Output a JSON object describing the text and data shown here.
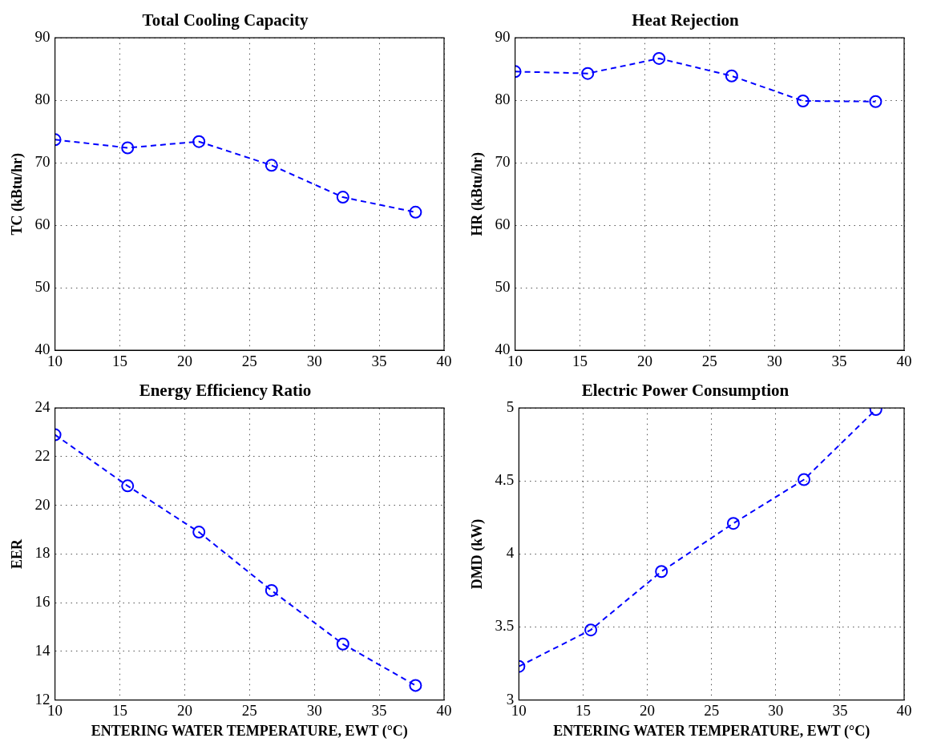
{
  "chart_data": [
    {
      "type": "line",
      "title": "Total Cooling Capacity",
      "ylabel": "TC (kBtu/hr)",
      "x": [
        10,
        15.6,
        21.1,
        26.7,
        32.2,
        37.8
      ],
      "series": [
        {
          "color": "#0000ff",
          "values": [
            73.7,
            72.4,
            73.4,
            69.6,
            64.5,
            62.1
          ]
        }
      ],
      "xlim": [
        10,
        40
      ],
      "xticks": [
        10,
        15,
        20,
        25,
        30,
        35,
        40
      ],
      "ylim": [
        40,
        90
      ],
      "yticks": [
        40,
        50,
        60,
        70,
        80,
        90
      ],
      "grid": true,
      "marker": "circle",
      "line_style": "dashed"
    },
    {
      "type": "line",
      "title": "Heat Rejection",
      "ylabel": "HR (kBtu/hr)",
      "x": [
        10,
        15.6,
        21.1,
        26.7,
        32.2,
        37.8
      ],
      "series": [
        {
          "color": "#0000ff",
          "values": [
            84.6,
            84.3,
            86.7,
            83.9,
            79.9,
            79.8
          ]
        }
      ],
      "xlim": [
        10,
        40
      ],
      "xticks": [
        10,
        15,
        20,
        25,
        30,
        35,
        40
      ],
      "ylim": [
        40,
        90
      ],
      "yticks": [
        40,
        50,
        60,
        70,
        80,
        90
      ],
      "grid": true,
      "marker": "circle",
      "line_style": "dashed"
    },
    {
      "type": "line",
      "title": "Energy Efficiency Ratio",
      "xlabel": "ENTERING WATER TEMPERATURE, EWT (°C)",
      "ylabel": "EER",
      "x": [
        10,
        15.6,
        21.1,
        26.7,
        32.2,
        37.8
      ],
      "series": [
        {
          "color": "#0000ff",
          "values": [
            22.9,
            20.8,
            18.9,
            16.5,
            14.3,
            12.6
          ]
        }
      ],
      "xlim": [
        10,
        40
      ],
      "xticks": [
        10,
        15,
        20,
        25,
        30,
        35,
        40
      ],
      "ylim": [
        12,
        24
      ],
      "yticks": [
        12,
        14,
        16,
        18,
        20,
        22,
        24
      ],
      "grid": true,
      "marker": "circle",
      "line_style": "dashed"
    },
    {
      "type": "line",
      "title": "Electric Power Consumption",
      "xlabel": "ENTERING WATER TEMPERATURE, EWT (°C)",
      "ylabel": "DMD (kW)",
      "x": [
        10,
        15.6,
        21.1,
        26.7,
        32.2,
        37.8
      ],
      "series": [
        {
          "color": "#0000ff",
          "values": [
            3.23,
            3.48,
            3.88,
            4.21,
            4.51,
            4.99
          ]
        }
      ],
      "xlim": [
        10,
        40
      ],
      "xticks": [
        10,
        15,
        20,
        25,
        30,
        35,
        40
      ],
      "ylim": [
        3,
        5
      ],
      "yticks": [
        3,
        3.5,
        4,
        4.5,
        5
      ],
      "grid": true,
      "marker": "circle",
      "line_style": "dashed"
    }
  ]
}
